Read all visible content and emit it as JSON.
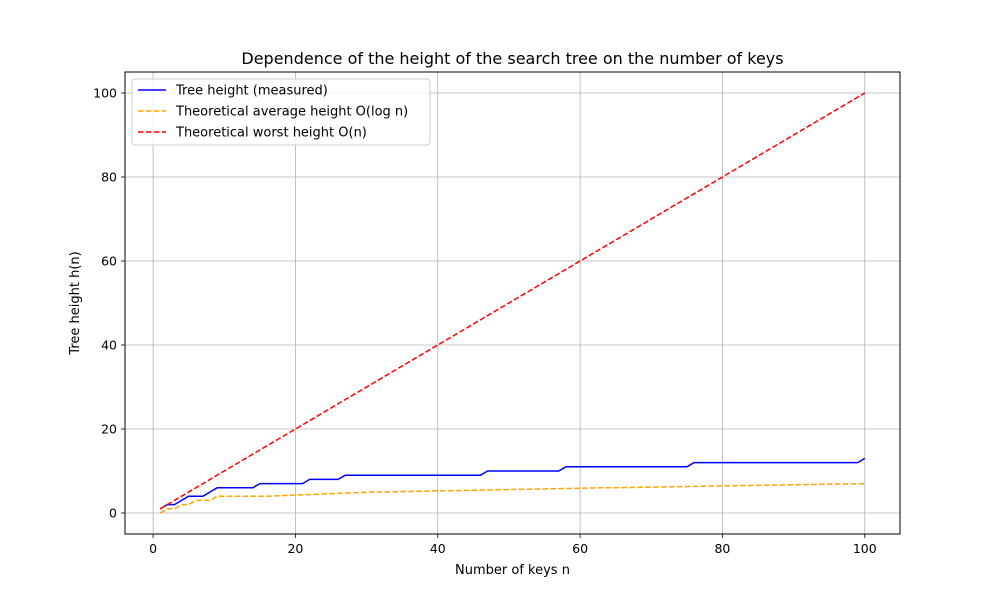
{
  "chart_data": {
    "type": "line",
    "title": "Dependence of the height of the search tree on the number of keys",
    "xlabel": "Number of keys n",
    "ylabel": "Tree height h(n)",
    "xlim": [
      -3.95,
      104.95
    ],
    "ylim": [
      -5.0,
      105.0
    ],
    "xticks": [
      0,
      20,
      40,
      60,
      80,
      100
    ],
    "yticks": [
      0,
      20,
      40,
      60,
      80,
      100
    ],
    "grid": true,
    "legend_position": "top-left",
    "series": [
      {
        "name": "Tree height (measured)",
        "color": "#0000ff",
        "style": "solid",
        "x": [
          1,
          2,
          3,
          4,
          5,
          6,
          7,
          8,
          9,
          14,
          15,
          21,
          22,
          26,
          27,
          46,
          47,
          57,
          58,
          75,
          76,
          99,
          100
        ],
        "y": [
          1,
          2,
          2,
          3,
          4,
          4,
          4,
          5,
          6,
          6,
          7,
          7,
          8,
          8,
          9,
          9,
          10,
          10,
          11,
          11,
          12,
          12,
          13
        ]
      },
      {
        "name": "Theoretical average height O(log n)",
        "color": "#ffa500",
        "style": "dashed",
        "x": [
          1,
          2,
          3,
          4,
          5,
          6,
          7,
          8,
          9,
          15,
          16,
          31,
          32,
          63,
          64,
          100
        ],
        "y": [
          0,
          1,
          1,
          2,
          2,
          3,
          3,
          3,
          4,
          4,
          4,
          5,
          5,
          6,
          6,
          7
        ]
      },
      {
        "name": "Theoretical worst height O(n)",
        "color": "#ff0000",
        "style": "dashed",
        "x": [
          1,
          100
        ],
        "y": [
          1,
          100
        ]
      }
    ]
  }
}
